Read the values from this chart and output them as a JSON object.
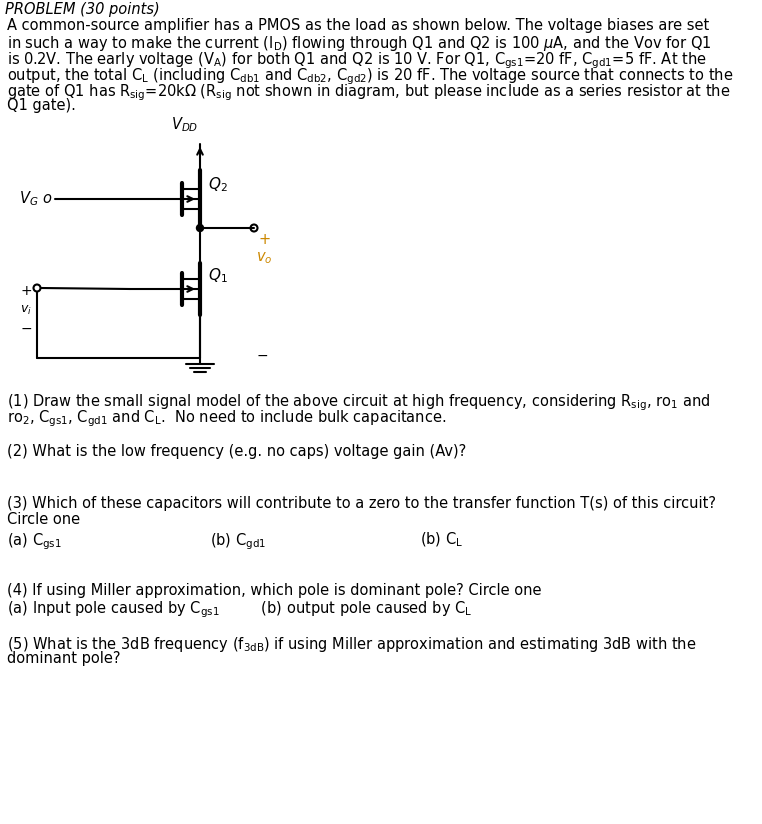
{
  "bg_color": "#ffffff",
  "fs": 10.5,
  "para_lines": [
    "A common-source amplifier has a PMOS as the load as shown below. The voltage biases are set",
    "in such a way to make the current (I$_\\mathrm{D}$) flowing through Q1 and Q2 is 100 $\\mu$A, and the Vov for Q1",
    "is 0.2V. The early voltage (V$_\\mathrm{A}$) for both Q1 and Q2 is 10 V. For Q1, C$_\\mathrm{gs1}$=20 fF, C$_\\mathrm{gd1}$=5 fF. At the",
    "output, the total C$_\\mathrm{L}$ (including C$_\\mathrm{db1}$ and C$_\\mathrm{db2}$, C$_\\mathrm{gd2}$) is 20 fF. The voltage source that connects to the",
    "gate of Q1 has R$_\\mathrm{sig}$=20k$\\Omega$ (R$_\\mathrm{sig}$ not shown in diagram, but please include as a series resistor at the",
    "Q1 gate)."
  ],
  "q1_lines": [
    "(1) Draw the small signal model of the above circuit at high frequency, considering R$_\\mathrm{sig}$, ro$_1$ and",
    "ro$_2$, C$_\\mathrm{gs1}$, C$_\\mathrm{gd1}$ and C$_\\mathrm{L}$.  No need to include bulk capacitance."
  ],
  "q2": "(2) What is the low frequency (e.g. no caps) voltage gain (Av)?",
  "q3_lines": [
    "(3) Which of these capacitors will contribute to a zero to the transfer function T(s) of this circuit?",
    "Circle one"
  ],
  "q3a": "(a) C$_\\mathrm{gs1}$",
  "q3b": "(b) C$_\\mathrm{gd1}$",
  "q3c": "(b) C$_\\mathrm{L}$",
  "q4_lines": [
    "(4) If using Miller approximation, which pole is dominant pole? Circle one",
    "(a) Input pole caused by C$_\\mathrm{gs1}$         (b) output pole caused by C$_\\mathrm{L}$"
  ],
  "q5_lines": [
    "(5) What is the 3dB frequency (f$_\\mathrm{3dB}$) if using Miller approximation and estimating 3dB with the",
    "dominant pole?"
  ]
}
